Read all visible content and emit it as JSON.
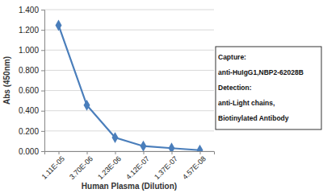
{
  "chart_data": {
    "type": "line",
    "x_label": "Human Plasma (Dilution)",
    "y_label": "Abs (450nm)",
    "categories": [
      "1.11E-05",
      "3.70E-06",
      "1.23E-06",
      "4.12E-07",
      "1.37E-07",
      "4.57E-08"
    ],
    "values": [
      1.245,
      0.455,
      0.135,
      0.05,
      0.03,
      0.01
    ],
    "color": "#4a7ebb",
    "marker": "diamond",
    "line_style": "solid",
    "ylim": [
      0,
      1.4
    ],
    "yticks": [
      {
        "value": 0,
        "label": "0.000"
      },
      {
        "value": 0.2,
        "label": "0.200"
      },
      {
        "value": 0.4,
        "label": "0.400"
      },
      {
        "value": 0.6,
        "label": "0.600"
      },
      {
        "value": 0.8,
        "label": "0.800"
      },
      {
        "value": 1.0,
        "label": "1.000"
      },
      {
        "value": 1.2,
        "label": "1.200"
      },
      {
        "value": 1.4,
        "label": "1.400"
      }
    ],
    "grid": true,
    "annotations": [
      "Capture:",
      "anti-HuIgG1,NBP2-62028B",
      "Detection:",
      "anti-Light chains,",
      "Biotinylated Antibody"
    ]
  }
}
